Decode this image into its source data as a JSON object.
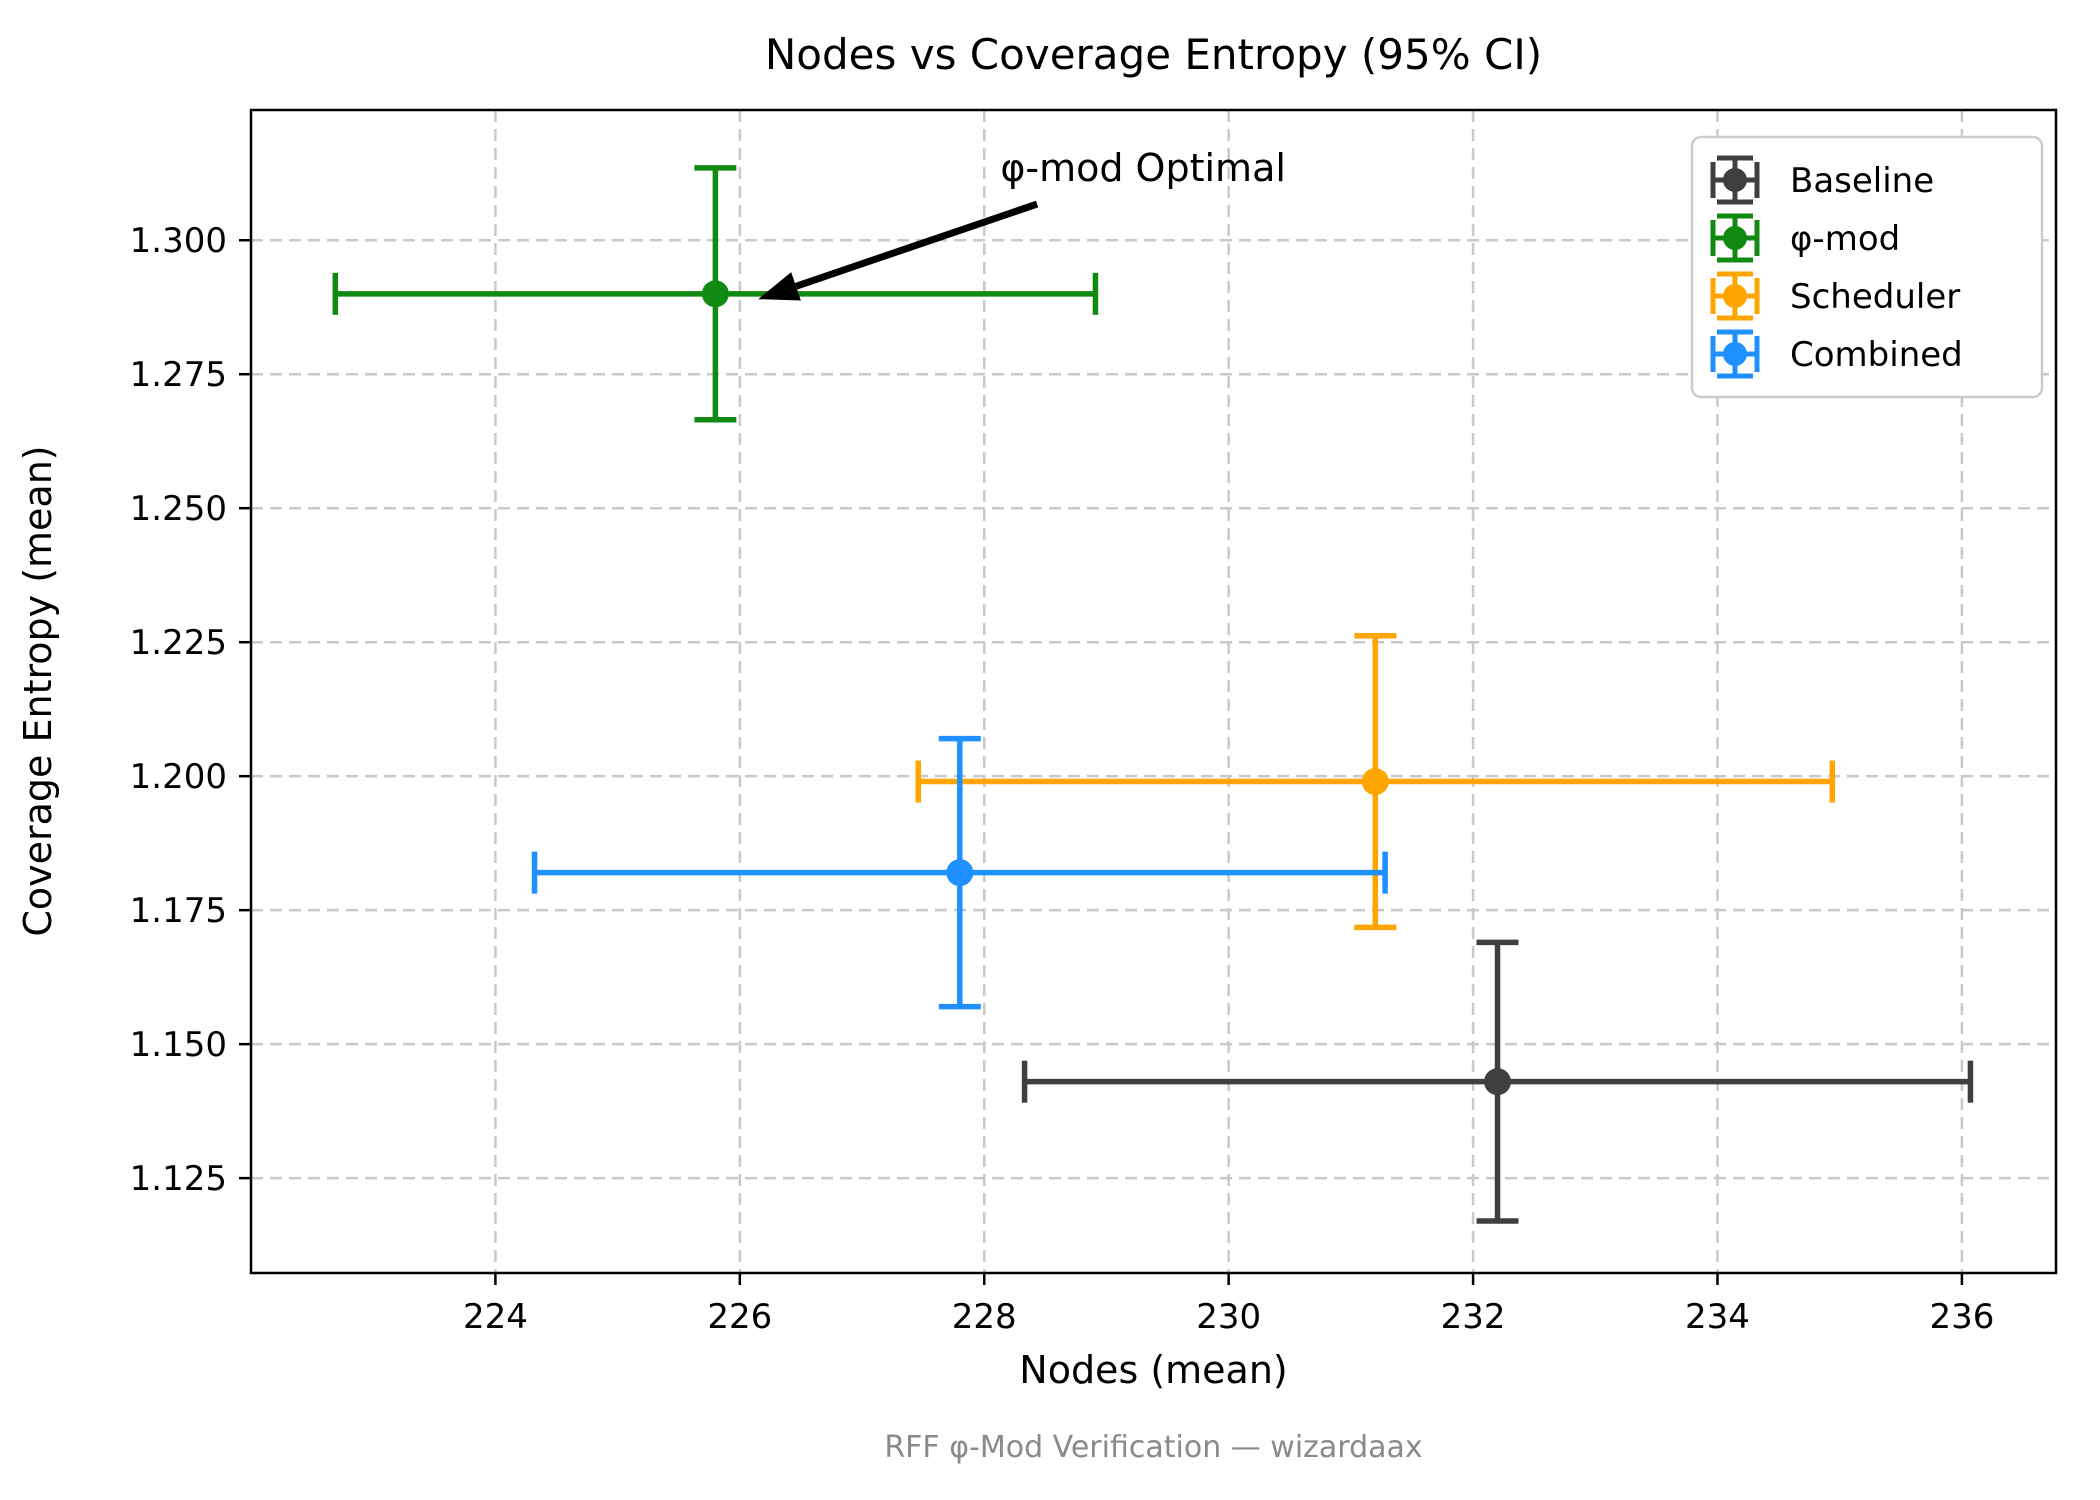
{
  "chart_data": {
    "type": "scatter",
    "title": "Nodes vs Coverage Entropy (95% CI)",
    "xlabel": "Nodes (mean)",
    "ylabel": "Coverage Entropy (mean)",
    "caption": "RFF φ-Mod Verification — wizardaax",
    "error_bars": "95% CI",
    "grid": true,
    "legend_position": "upper right",
    "xlim": [
      222.0,
      236.77
    ],
    "ylim": [
      1.1073,
      1.3243
    ],
    "xticks": [
      224,
      226,
      228,
      230,
      232,
      234,
      236
    ],
    "yticks": [
      1.125,
      1.15,
      1.175,
      1.2,
      1.225,
      1.25,
      1.275,
      1.3
    ],
    "series": [
      {
        "name": "Baseline",
        "color": "#3f3f3f",
        "x": 232.2,
        "y": 1.143,
        "xerr": 3.87,
        "yerr": 0.026
      },
      {
        "name": "φ-mod",
        "color": "#108a10",
        "x": 225.8,
        "y": 1.29,
        "xerr": 3.11,
        "yerr": 0.0235
      },
      {
        "name": "Scheduler",
        "color": "#ffa500",
        "x": 231.2,
        "y": 1.199,
        "xerr": 3.74,
        "yerr": 0.0272
      },
      {
        "name": "Combined",
        "color": "#1e90ff",
        "x": 227.8,
        "y": 1.182,
        "xerr": 3.48,
        "yerr": 0.025
      }
    ],
    "annotation": {
      "text": "φ-mod Optimal",
      "xy": [
        226.15,
        1.289
      ],
      "xytext": [
        229.3,
        1.3135
      ],
      "arrow_color": "#000000"
    },
    "style": {
      "grid_color": "#c9c9c9",
      "spine_color": "#000000",
      "legend_border_color": "#cccccc",
      "caption_color": "#8a8a8a"
    }
  }
}
